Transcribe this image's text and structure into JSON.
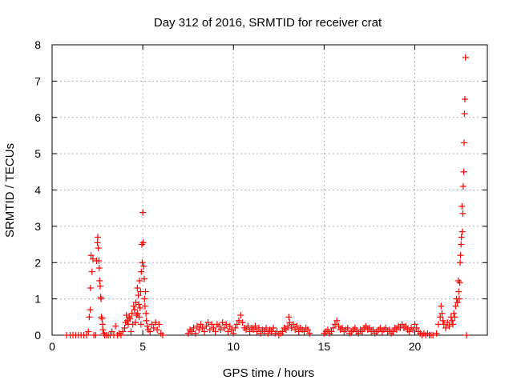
{
  "chart_data": {
    "type": "scatter",
    "title": "Day 312 of 2016, SRMTID for receiver crat",
    "xlabel": "GPS time / hours",
    "ylabel": "SRMTID / TECUs",
    "xlim": [
      0,
      24
    ],
    "ylim": [
      0,
      8
    ],
    "xticks": [
      0,
      5,
      10,
      15,
      20
    ],
    "yticks": [
      0,
      1,
      2,
      3,
      4,
      5,
      6,
      7,
      8
    ],
    "grid": true,
    "marker": "+",
    "color": "#ff0000",
    "series": [
      {
        "name": "SRMTID",
        "points": [
          [
            0.8,
            0
          ],
          [
            1.0,
            0
          ],
          [
            1.15,
            0
          ],
          [
            1.3,
            0
          ],
          [
            1.45,
            0
          ],
          [
            1.6,
            0
          ],
          [
            1.75,
            0
          ],
          [
            1.9,
            0
          ],
          [
            2.0,
            0.1
          ],
          [
            2.05,
            0.5
          ],
          [
            2.1,
            0.7
          ],
          [
            2.12,
            1.3
          ],
          [
            2.15,
            2.2
          ],
          [
            2.2,
            1.75
          ],
          [
            2.25,
            2.1
          ],
          [
            2.3,
            0
          ],
          [
            2.4,
            0
          ],
          [
            2.45,
            2.05
          ],
          [
            2.5,
            2.55
          ],
          [
            2.52,
            2.7
          ],
          [
            2.55,
            2.4
          ],
          [
            2.58,
            2.05
          ],
          [
            2.6,
            1.85
          ],
          [
            2.62,
            1.5
          ],
          [
            2.65,
            1.35
          ],
          [
            2.68,
            1.05
          ],
          [
            2.7,
            1.0
          ],
          [
            2.72,
            0.5
          ],
          [
            2.75,
            0.45
          ],
          [
            2.78,
            0.3
          ],
          [
            2.8,
            0.15
          ],
          [
            2.85,
            0.05
          ],
          [
            2.9,
            0
          ],
          [
            3.0,
            0
          ],
          [
            3.1,
            0
          ],
          [
            3.2,
            0
          ],
          [
            3.3,
            0.1
          ],
          [
            3.4,
            0
          ],
          [
            3.5,
            0.25
          ],
          [
            3.6,
            0
          ],
          [
            3.7,
            0.05
          ],
          [
            3.8,
            0
          ],
          [
            3.9,
            0.1
          ],
          [
            4.0,
            0.2
          ],
          [
            4.05,
            0.35
          ],
          [
            4.1,
            0.55
          ],
          [
            4.15,
            0.4
          ],
          [
            4.2,
            0.3
          ],
          [
            4.25,
            0.5
          ],
          [
            4.3,
            0.45
          ],
          [
            4.35,
            0.1
          ],
          [
            4.4,
            0.6
          ],
          [
            4.45,
            0.3
          ],
          [
            4.5,
            0.8
          ],
          [
            4.55,
            0.7
          ],
          [
            4.6,
            0.35
          ],
          [
            4.62,
            0.9
          ],
          [
            4.65,
            0.55
          ],
          [
            4.7,
            1.3
          ],
          [
            4.72,
            0.6
          ],
          [
            4.75,
            1.1
          ],
          [
            4.78,
            0.85
          ],
          [
            4.8,
            0.5
          ],
          [
            4.82,
            1.5
          ],
          [
            4.85,
            0.75
          ],
          [
            4.88,
            1.2
          ],
          [
            4.9,
            0.3
          ],
          [
            4.92,
            1.75
          ],
          [
            4.95,
            2.5
          ],
          [
            4.97,
            2.0
          ],
          [
            5.0,
            3.38
          ],
          [
            5.02,
            2.55
          ],
          [
            5.05,
            1.9
          ],
          [
            5.08,
            1.55
          ],
          [
            5.1,
            1.0
          ],
          [
            5.12,
            0.8
          ],
          [
            5.15,
            1.2
          ],
          [
            5.18,
            0.6
          ],
          [
            5.2,
            0.4
          ],
          [
            5.25,
            0.25
          ],
          [
            5.3,
            0.15
          ],
          [
            5.4,
            0.1
          ],
          [
            5.5,
            0.3
          ],
          [
            5.6,
            0.2
          ],
          [
            5.7,
            0.35
          ],
          [
            5.8,
            0.15
          ],
          [
            5.9,
            0.3
          ],
          [
            6.0,
            0.05
          ],
          [
            6.1,
            0
          ],
          [
            7.5,
            0.05
          ],
          [
            7.6,
            0.15
          ],
          [
            7.7,
            0.1
          ],
          [
            7.8,
            0.2
          ],
          [
            7.9,
            0.05
          ],
          [
            8.0,
            0.25
          ],
          [
            8.1,
            0.15
          ],
          [
            8.2,
            0.3
          ],
          [
            8.3,
            0.2
          ],
          [
            8.4,
            0.1
          ],
          [
            8.5,
            0.25
          ],
          [
            8.6,
            0.35
          ],
          [
            8.7,
            0.15
          ],
          [
            8.8,
            0.3
          ],
          [
            8.9,
            0.2
          ],
          [
            9.0,
            0.1
          ],
          [
            9.1,
            0.3
          ],
          [
            9.2,
            0.25
          ],
          [
            9.3,
            0.15
          ],
          [
            9.4,
            0.35
          ],
          [
            9.5,
            0.2
          ],
          [
            9.6,
            0.3
          ],
          [
            9.7,
            0.1
          ],
          [
            9.8,
            0.25
          ],
          [
            9.9,
            0.15
          ],
          [
            10.0,
            0.05
          ],
          [
            10.1,
            0.2
          ],
          [
            10.2,
            0.3
          ],
          [
            10.3,
            0.4
          ],
          [
            10.4,
            0.55
          ],
          [
            10.5,
            0.35
          ],
          [
            10.6,
            0.2
          ],
          [
            10.7,
            0.15
          ],
          [
            10.8,
            0.25
          ],
          [
            10.9,
            0.1
          ],
          [
            11.0,
            0.2
          ],
          [
            11.1,
            0.15
          ],
          [
            11.2,
            0.25
          ],
          [
            11.3,
            0.1
          ],
          [
            11.4,
            0.2
          ],
          [
            11.5,
            0.05
          ],
          [
            11.6,
            0.15
          ],
          [
            11.7,
            0.1
          ],
          [
            11.8,
            0.2
          ],
          [
            11.9,
            0.05
          ],
          [
            12.0,
            0.15
          ],
          [
            12.1,
            0.1
          ],
          [
            12.2,
            0.2
          ],
          [
            12.3,
            0.05
          ],
          [
            12.4,
            0.1
          ],
          [
            12.5,
            0
          ],
          [
            12.6,
            0.05
          ],
          [
            12.7,
            0.1
          ],
          [
            12.8,
            0.2
          ],
          [
            12.9,
            0.15
          ],
          [
            13.0,
            0.25
          ],
          [
            13.05,
            0.5
          ],
          [
            13.1,
            0.35
          ],
          [
            13.2,
            0.2
          ],
          [
            13.3,
            0.3
          ],
          [
            13.4,
            0.15
          ],
          [
            13.5,
            0.25
          ],
          [
            13.6,
            0.1
          ],
          [
            13.7,
            0.2
          ],
          [
            13.8,
            0.15
          ],
          [
            13.9,
            0.1
          ],
          [
            14.0,
            0.2
          ],
          [
            14.1,
            0.15
          ],
          [
            14.2,
            0.05
          ],
          [
            15.0,
            0.05
          ],
          [
            15.1,
            0.1
          ],
          [
            15.2,
            0.15
          ],
          [
            15.3,
            0.05
          ],
          [
            15.4,
            0.1
          ],
          [
            15.5,
            0.2
          ],
          [
            15.6,
            0.3
          ],
          [
            15.7,
            0.4
          ],
          [
            15.8,
            0.25
          ],
          [
            15.9,
            0.15
          ],
          [
            16.0,
            0.2
          ],
          [
            16.1,
            0.1
          ],
          [
            16.2,
            0.15
          ],
          [
            16.3,
            0.2
          ],
          [
            16.4,
            0.05
          ],
          [
            16.5,
            0.1
          ],
          [
            16.6,
            0.15
          ],
          [
            16.7,
            0.2
          ],
          [
            16.8,
            0.1
          ],
          [
            16.9,
            0.05
          ],
          [
            17.0,
            0.15
          ],
          [
            17.1,
            0.1
          ],
          [
            17.2,
            0.2
          ],
          [
            17.3,
            0.25
          ],
          [
            17.4,
            0.15
          ],
          [
            17.5,
            0.2
          ],
          [
            17.6,
            0.1
          ],
          [
            17.7,
            0.15
          ],
          [
            17.8,
            0.05
          ],
          [
            17.9,
            0.1
          ],
          [
            18.0,
            0.15
          ],
          [
            18.1,
            0.2
          ],
          [
            18.2,
            0.1
          ],
          [
            18.3,
            0.15
          ],
          [
            18.4,
            0.2
          ],
          [
            18.5,
            0.1
          ],
          [
            18.6,
            0.15
          ],
          [
            18.7,
            0.05
          ],
          [
            18.8,
            0.1
          ],
          [
            18.9,
            0.2
          ],
          [
            19.0,
            0.15
          ],
          [
            19.1,
            0.25
          ],
          [
            19.2,
            0.2
          ],
          [
            19.3,
            0.3
          ],
          [
            19.4,
            0.2
          ],
          [
            19.5,
            0.25
          ],
          [
            19.6,
            0.15
          ],
          [
            19.7,
            0.1
          ],
          [
            19.8,
            0.2
          ],
          [
            19.9,
            0.15
          ],
          [
            20.0,
            0.3
          ],
          [
            20.1,
            0.2
          ],
          [
            20.2,
            0.1
          ],
          [
            20.3,
            0.05
          ],
          [
            20.4,
            0
          ],
          [
            20.5,
            0.05
          ],
          [
            20.6,
            0
          ],
          [
            20.7,
            0.05
          ],
          [
            20.8,
            0
          ],
          [
            20.9,
            0
          ],
          [
            21.0,
            0
          ],
          [
            21.2,
            0.05
          ],
          [
            21.3,
            0.3
          ],
          [
            21.4,
            0.5
          ],
          [
            21.45,
            0.8
          ],
          [
            21.5,
            0.6
          ],
          [
            21.55,
            0.4
          ],
          [
            21.6,
            0.3
          ],
          [
            21.7,
            0.2
          ],
          [
            21.8,
            0.35
          ],
          [
            21.9,
            0.25
          ],
          [
            22.0,
            0.5
          ],
          [
            22.05,
            0.4
          ],
          [
            22.1,
            0.3
          ],
          [
            22.15,
            0.6
          ],
          [
            22.2,
            0.5
          ],
          [
            22.25,
            0.8
          ],
          [
            22.3,
            1.0
          ],
          [
            22.35,
            0.9
          ],
          [
            22.4,
            1.5
          ],
          [
            22.42,
            1.2
          ],
          [
            22.45,
            1.0
          ],
          [
            22.48,
            1.45
          ],
          [
            22.5,
            2.0
          ],
          [
            22.52,
            2.2
          ],
          [
            22.55,
            2.5
          ],
          [
            22.57,
            2.7
          ],
          [
            22.6,
            3.55
          ],
          [
            22.62,
            2.85
          ],
          [
            22.65,
            3.35
          ],
          [
            22.67,
            4.1
          ],
          [
            22.7,
            4.5
          ],
          [
            22.72,
            5.3
          ],
          [
            22.74,
            6.1
          ],
          [
            22.76,
            6.5
          ],
          [
            22.8,
            7.65
          ],
          [
            22.85,
            0
          ]
        ]
      }
    ]
  }
}
